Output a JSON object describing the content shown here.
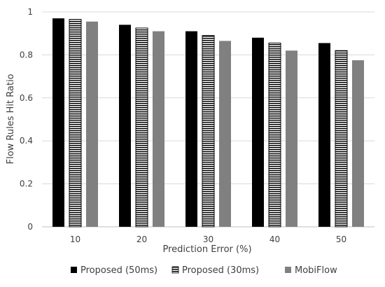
{
  "chart_data": {
    "type": "bar",
    "categories": [
      "10",
      "20",
      "30",
      "40",
      "50"
    ],
    "series": [
      {
        "name": "Proposed (50ms)",
        "values": [
          0.97,
          0.94,
          0.91,
          0.88,
          0.855
        ],
        "color": "#000000",
        "pattern": "solid"
      },
      {
        "name": "Proposed (30ms)",
        "values": [
          0.965,
          0.925,
          0.89,
          0.855,
          0.82
        ],
        "color": "#000000",
        "pattern": "horizontal-stripes"
      },
      {
        "name": "MobiFlow",
        "values": [
          0.955,
          0.91,
          0.865,
          0.82,
          0.775
        ],
        "color": "#808080",
        "pattern": "solid"
      }
    ],
    "title": "",
    "xlabel": "Prediction Error (%)",
    "ylabel": "Flow Rules Hit Ratio",
    "ylim": [
      0,
      1
    ],
    "yticks": [
      "0",
      "0.2",
      "0.4",
      "0.6",
      "0.8",
      "1"
    ],
    "grid": "horizontal",
    "legend_position": "bottom"
  }
}
